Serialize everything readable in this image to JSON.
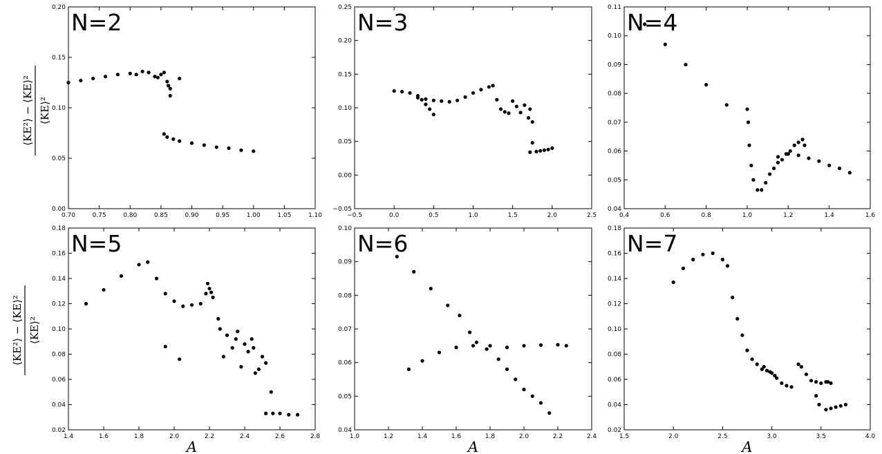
{
  "figure": {
    "ylabel_numerator": "⟨KE²⟩ − ⟨KE⟩²",
    "ylabel_denominator": "⟨KE⟩²"
  },
  "chart_data": [
    {
      "type": "scatter",
      "label": "N=2",
      "xlabel": "",
      "xlim": [
        0.7,
        1.1
      ],
      "ylim": [
        0.0,
        0.2
      ],
      "xticks": [
        "0.70",
        "0.75",
        "0.80",
        "0.85",
        "0.90",
        "0.95",
        "1.00",
        "1.05",
        "1.10"
      ],
      "yticks": [
        "0.00",
        "0.05",
        "0.10",
        "0.15",
        "0.20"
      ],
      "x": [
        0.7,
        0.72,
        0.74,
        0.76,
        0.78,
        0.8,
        0.81,
        0.82,
        0.83,
        0.84,
        0.845,
        0.85,
        0.855,
        0.86,
        0.862,
        0.865,
        0.865,
        0.88,
        0.855,
        0.86,
        0.87,
        0.88,
        0.9,
        0.92,
        0.94,
        0.96,
        0.98,
        1.0
      ],
      "y": [
        0.125,
        0.127,
        0.129,
        0.131,
        0.133,
        0.134,
        0.133,
        0.136,
        0.135,
        0.131,
        0.13,
        0.133,
        0.135,
        0.126,
        0.122,
        0.119,
        0.112,
        0.129,
        0.074,
        0.071,
        0.069,
        0.067,
        0.065,
        0.063,
        0.061,
        0.06,
        0.058,
        0.057
      ]
    },
    {
      "type": "scatter",
      "label": "N=3",
      "xlabel": "",
      "xlim": [
        -0.5,
        2.5
      ],
      "ylim": [
        -0.05,
        0.25
      ],
      "xticks": [
        "−0.5",
        "0.0",
        "0.5",
        "1.0",
        "1.5",
        "2.0",
        "2.5"
      ],
      "yticks": [
        "−0.05",
        "0.00",
        "0.05",
        "0.10",
        "0.15",
        "0.20",
        "0.25"
      ],
      "x": [
        0.0,
        0.1,
        0.2,
        0.3,
        0.35,
        0.4,
        0.45,
        0.5,
        0.3,
        0.4,
        0.5,
        0.6,
        0.7,
        0.8,
        0.9,
        1.0,
        1.1,
        1.2,
        1.25,
        1.3,
        1.35,
        1.4,
        1.45,
        1.5,
        1.55,
        1.6,
        1.65,
        1.7,
        1.72,
        1.75,
        1.72,
        1.75,
        1.8,
        1.85,
        1.9,
        1.95,
        2.0
      ],
      "y": [
        0.125,
        0.124,
        0.122,
        0.118,
        0.112,
        0.105,
        0.098,
        0.09,
        0.115,
        0.113,
        0.111,
        0.11,
        0.109,
        0.111,
        0.116,
        0.122,
        0.127,
        0.131,
        0.133,
        0.112,
        0.098,
        0.094,
        0.092,
        0.11,
        0.102,
        0.093,
        0.104,
        0.085,
        0.098,
        0.079,
        0.034,
        0.048,
        0.035,
        0.036,
        0.037,
        0.038,
        0.04
      ]
    },
    {
      "type": "scatter",
      "label": "N=4",
      "xlabel": "",
      "xlim": [
        0.4,
        1.6
      ],
      "ylim": [
        0.04,
        0.11
      ],
      "xticks": [
        "0.4",
        "0.6",
        "0.8",
        "1.0",
        "1.2",
        "1.4",
        "1.6"
      ],
      "yticks": [
        "0.04",
        "0.05",
        "0.06",
        "0.07",
        "0.08",
        "0.09",
        "0.10",
        "0.11"
      ],
      "x": [
        0.5,
        0.6,
        0.7,
        0.8,
        0.9,
        1.0,
        1.005,
        1.01,
        1.02,
        1.03,
        1.05,
        1.07,
        1.09,
        1.11,
        1.13,
        1.15,
        1.17,
        1.19,
        1.21,
        1.23,
        1.25,
        1.27,
        1.28,
        1.15,
        1.2,
        1.25,
        1.3,
        1.35,
        1.4,
        1.45,
        1.5
      ],
      "y": [
        0.104,
        0.097,
        0.09,
        0.083,
        0.076,
        0.0745,
        0.07,
        0.062,
        0.055,
        0.05,
        0.0465,
        0.0465,
        0.049,
        0.052,
        0.054,
        0.056,
        0.057,
        0.059,
        0.06,
        0.062,
        0.063,
        0.064,
        0.062,
        0.058,
        0.059,
        0.0585,
        0.0575,
        0.0565,
        0.055,
        0.054,
        0.0525
      ]
    },
    {
      "type": "scatter",
      "label": "N=5",
      "xlabel": "A",
      "xlim": [
        1.4,
        2.8
      ],
      "ylim": [
        0.02,
        0.18
      ],
      "xticks": [
        "1.4",
        "1.6",
        "1.8",
        "2.0",
        "2.2",
        "2.4",
        "2.6",
        "2.8"
      ],
      "yticks": [
        "0.02",
        "0.04",
        "0.06",
        "0.08",
        "0.10",
        "0.12",
        "0.14",
        "0.16",
        "0.18"
      ],
      "x": [
        1.5,
        1.6,
        1.7,
        1.8,
        1.85,
        1.9,
        1.95,
        2.0,
        2.05,
        2.1,
        2.15,
        2.18,
        2.2,
        2.22,
        2.19,
        2.21,
        2.25,
        2.3,
        2.35,
        2.4,
        2.45,
        2.5,
        2.28,
        2.33,
        2.38,
        2.42,
        2.48,
        2.26,
        2.36,
        2.44,
        2.52,
        2.46,
        2.55,
        1.95,
        2.03,
        2.52,
        2.56,
        2.6,
        2.65,
        2.7
      ],
      "y": [
        0.12,
        0.131,
        0.142,
        0.151,
        0.153,
        0.14,
        0.128,
        0.122,
        0.118,
        0.119,
        0.12,
        0.128,
        0.132,
        0.125,
        0.136,
        0.129,
        0.108,
        0.095,
        0.092,
        0.088,
        0.085,
        0.078,
        0.078,
        0.085,
        0.07,
        0.082,
        0.068,
        0.1,
        0.098,
        0.092,
        0.073,
        0.065,
        0.05,
        0.086,
        0.076,
        0.033,
        0.033,
        0.033,
        0.032,
        0.032
      ]
    },
    {
      "type": "scatter",
      "label": "N=6",
      "xlabel": "A",
      "xlim": [
        1.0,
        2.4
      ],
      "ylim": [
        0.04,
        0.1
      ],
      "xticks": [
        "1.0",
        "1.2",
        "1.4",
        "1.6",
        "1.8",
        "2.0",
        "2.2",
        "2.4"
      ],
      "yticks": [
        "0.04",
        "0.05",
        "0.06",
        "0.07",
        "0.08",
        "0.09",
        "0.10"
      ],
      "x": [
        1.25,
        1.35,
        1.45,
        1.55,
        1.62,
        1.68,
        1.72,
        1.78,
        1.85,
        1.9,
        1.95,
        2.0,
        2.05,
        2.1,
        2.15,
        1.32,
        1.4,
        1.5,
        1.6,
        1.7,
        1.8,
        1.9,
        2.0,
        2.1,
        2.2,
        2.25
      ],
      "y": [
        0.0915,
        0.087,
        0.082,
        0.077,
        0.074,
        0.069,
        0.066,
        0.064,
        0.061,
        0.058,
        0.055,
        0.052,
        0.05,
        0.048,
        0.045,
        0.058,
        0.0605,
        0.063,
        0.0645,
        0.065,
        0.065,
        0.0645,
        0.065,
        0.0652,
        0.0653,
        0.065
      ]
    },
    {
      "type": "scatter",
      "label": "N=7",
      "xlabel": "A",
      "xlim": [
        1.5,
        4.0
      ],
      "ylim": [
        0.02,
        0.18
      ],
      "xticks": [
        "1.5",
        "2.0",
        "2.5",
        "3.0",
        "3.5",
        "4.0"
      ],
      "yticks": [
        "0.02",
        "0.04",
        "0.06",
        "0.08",
        "0.10",
        "0.12",
        "0.14",
        "0.16",
        "0.18"
      ],
      "x": [
        2.0,
        2.1,
        2.2,
        2.3,
        2.4,
        2.5,
        2.55,
        2.6,
        2.65,
        2.7,
        2.75,
        2.8,
        2.85,
        2.9,
        2.95,
        3.0,
        3.05,
        3.1,
        3.15,
        3.2,
        2.92,
        2.98,
        3.03,
        3.27,
        3.3,
        3.35,
        3.4,
        3.45,
        3.5,
        3.55,
        3.6,
        3.57,
        3.45,
        3.48,
        3.55,
        3.6,
        3.65,
        3.7,
        3.75
      ],
      "y": [
        0.137,
        0.148,
        0.155,
        0.159,
        0.16,
        0.155,
        0.15,
        0.125,
        0.108,
        0.095,
        0.083,
        0.076,
        0.072,
        0.068,
        0.067,
        0.065,
        0.061,
        0.057,
        0.055,
        0.054,
        0.07,
        0.066,
        0.063,
        0.072,
        0.07,
        0.064,
        0.059,
        0.058,
        0.057,
        0.058,
        0.057,
        0.058,
        0.047,
        0.04,
        0.036,
        0.037,
        0.038,
        0.039,
        0.04
      ]
    }
  ]
}
